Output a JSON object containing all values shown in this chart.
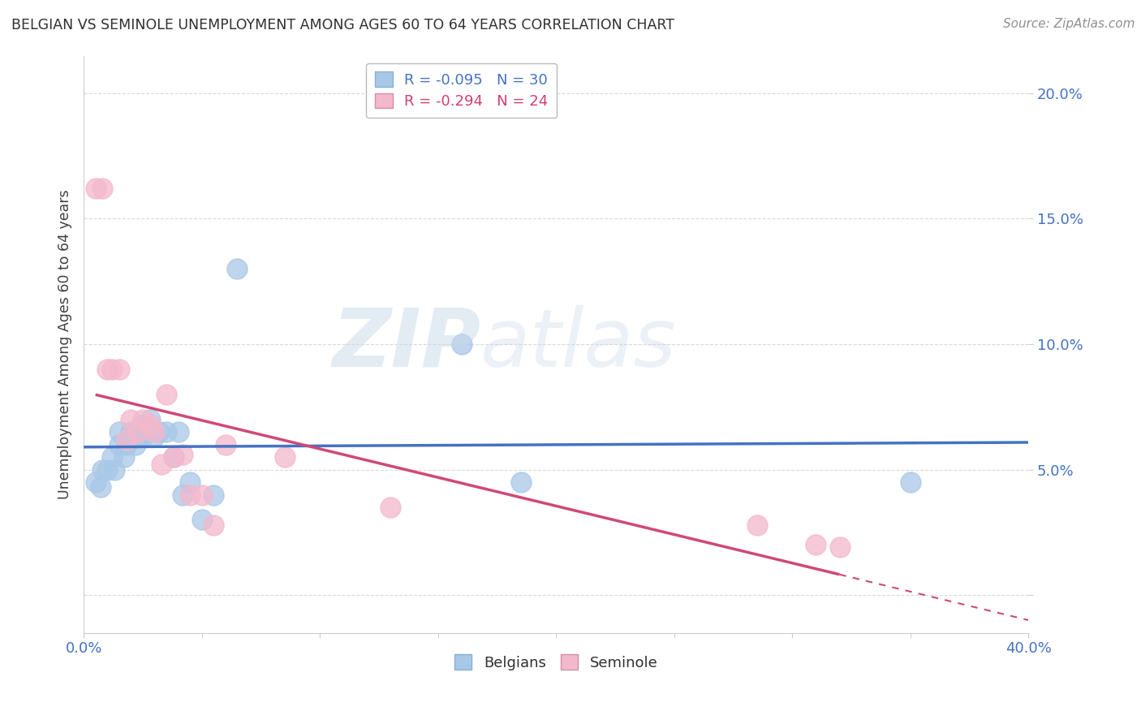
{
  "title": "BELGIAN VS SEMINOLE UNEMPLOYMENT AMONG AGES 60 TO 64 YEARS CORRELATION CHART",
  "source": "Source: ZipAtlas.com",
  "ylabel": "Unemployment Among Ages 60 to 64 years",
  "xlim": [
    0.0,
    0.4
  ],
  "ylim": [
    -0.015,
    0.215
  ],
  "xticks": [
    0.0,
    0.05,
    0.1,
    0.15,
    0.2,
    0.25,
    0.3,
    0.35,
    0.4
  ],
  "yticks": [
    0.0,
    0.05,
    0.1,
    0.15,
    0.2
  ],
  "legend_r_n": [
    {
      "r": "-0.095",
      "n": "30",
      "dot_color": "#a8c8e8",
      "text_color": "#4472c4"
    },
    {
      "r": "-0.294",
      "n": "24",
      "dot_color": "#f4b8cc",
      "text_color": "#d04070"
    }
  ],
  "watermark_left": "ZIP",
  "watermark_right": "atlas",
  "belgians_x": [
    0.005,
    0.007,
    0.008,
    0.01,
    0.012,
    0.013,
    0.015,
    0.015,
    0.017,
    0.018,
    0.02,
    0.022,
    0.022,
    0.025,
    0.025,
    0.027,
    0.028,
    0.03,
    0.032,
    0.035,
    0.038,
    0.04,
    0.042,
    0.045,
    0.05,
    0.055,
    0.065,
    0.16,
    0.185,
    0.35
  ],
  "belgians_y": [
    0.045,
    0.043,
    0.05,
    0.05,
    0.055,
    0.05,
    0.06,
    0.065,
    0.055,
    0.06,
    0.065,
    0.06,
    0.065,
    0.063,
    0.068,
    0.065,
    0.07,
    0.063,
    0.065,
    0.065,
    0.055,
    0.065,
    0.04,
    0.045,
    0.03,
    0.04,
    0.13,
    0.1,
    0.045,
    0.045
  ],
  "seminole_x": [
    0.005,
    0.008,
    0.01,
    0.012,
    0.015,
    0.018,
    0.02,
    0.023,
    0.025,
    0.028,
    0.03,
    0.033,
    0.035,
    0.038,
    0.042,
    0.045,
    0.05,
    0.055,
    0.06,
    0.085,
    0.13,
    0.285,
    0.31,
    0.32
  ],
  "seminole_y": [
    0.162,
    0.162,
    0.09,
    0.09,
    0.09,
    0.062,
    0.07,
    0.065,
    0.07,
    0.068,
    0.065,
    0.052,
    0.08,
    0.055,
    0.056,
    0.04,
    0.04,
    0.028,
    0.06,
    0.055,
    0.035,
    0.028,
    0.02,
    0.019
  ],
  "belgian_line_color": "#4472c4",
  "seminole_line_color": "#d04878",
  "belgian_dot_color": "#a8c8e8",
  "seminole_dot_color": "#f4b8cc",
  "background_color": "#ffffff",
  "grid_color": "#d8d8d8",
  "title_color": "#303030",
  "axis_label_color": "#4472c4",
  "ylabel_color": "#404040",
  "source_color": "#909090"
}
